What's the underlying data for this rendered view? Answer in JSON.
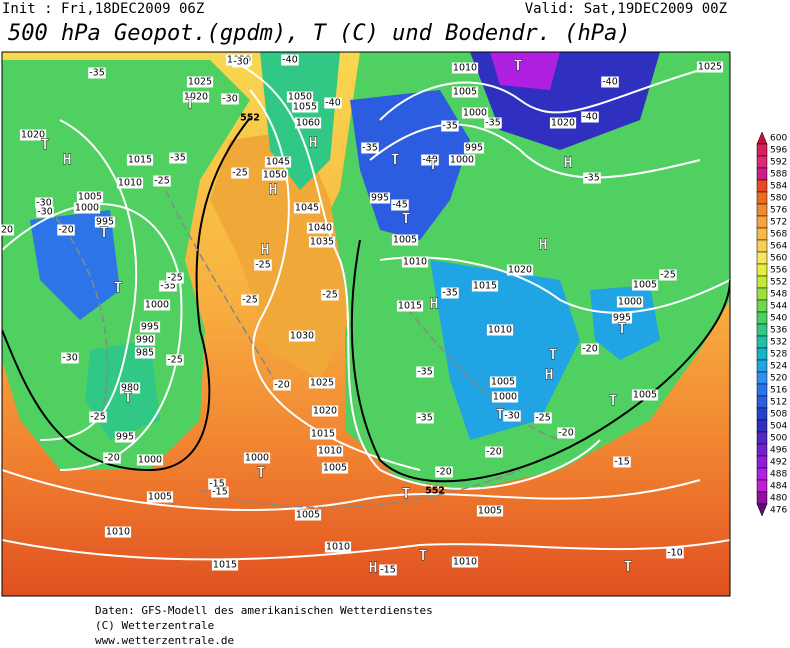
{
  "header": {
    "init": "Init : Fri,18DEC2009 06Z",
    "valid": "Valid: Sat,19DEC2009 00Z",
    "title": "500 hPa Geopot.(gpdm), T (C) und Bodendr. (hPa)"
  },
  "legend": {
    "levels": [
      600,
      596,
      592,
      588,
      584,
      580,
      576,
      572,
      568,
      564,
      560,
      556,
      552,
      548,
      544,
      540,
      536,
      532,
      528,
      524,
      520,
      516,
      512,
      508,
      504,
      500,
      496,
      492,
      488,
      484,
      480,
      476
    ],
    "colors": [
      "#c8103c",
      "#dc1e5a",
      "#e02878",
      "#d01c8a",
      "#e84a20",
      "#f06a20",
      "#f08a30",
      "#f8a240",
      "#f8b848",
      "#f8d050",
      "#f8e460",
      "#e4f040",
      "#c4e83a",
      "#9ce040",
      "#70d850",
      "#4cd064",
      "#30c884",
      "#20c0a4",
      "#14b4c4",
      "#20a4e4",
      "#3090f0",
      "#2c74e8",
      "#2c5ce0",
      "#2444d0",
      "#3030c0",
      "#5028c8",
      "#7020d0",
      "#9020d8",
      "#b020e0",
      "#c020d0",
      "#9010a0",
      "#600880"
    ]
  },
  "map": {
    "isobar_labels": [
      1030,
      1025,
      1020,
      1020,
      1015,
      1010,
      1005,
      1000,
      995,
      1050,
      1055,
      1060,
      1045,
      1050,
      1045,
      1040,
      1035,
      1010,
      1005,
      1000,
      995,
      1000,
      995,
      1005,
      1010,
      1020,
      1025,
      1020,
      1015,
      1015,
      1010,
      1005,
      1000,
      995,
      1005,
      1000,
      1005,
      1000,
      995,
      990,
      985,
      980,
      995,
      1000,
      1030,
      1025,
      1020,
      1015,
      1010,
      1005,
      1000,
      1005,
      1010,
      1015,
      1010,
      1005,
      1005,
      1010
    ],
    "temperature_labels": [
      -35,
      -30,
      -30,
      -35,
      -25,
      -30,
      -30,
      -20,
      -35,
      -25,
      -30,
      -25,
      -25,
      -20,
      -15,
      -15,
      -25,
      -25,
      -25,
      -25,
      -20,
      -40,
      -40,
      -35,
      -40,
      -35,
      -35,
      -45,
      -40,
      -40,
      -35,
      -25,
      -20,
      -35,
      -35,
      -35,
      -30,
      -25,
      -20,
      -20,
      -20,
      -15,
      -10,
      -15,
      20
    ],
    "pressure_centers": [
      "T",
      "T",
      "H",
      "T",
      "T",
      "T",
      "T",
      "H",
      "H",
      "H",
      "T",
      "T",
      "T",
      "H",
      "H",
      "H",
      "T",
      "H",
      "T",
      "T",
      "T",
      "T",
      "T",
      "T",
      "H",
      "T"
    ],
    "height_labels": [
      552,
      552
    ]
  },
  "footer": {
    "source": "Daten: GFS-Modell des amerikanischen Wetterdienstes",
    "copyright": "(C) Wetterzentrale",
    "url": "www.wetterzentrale.de"
  }
}
